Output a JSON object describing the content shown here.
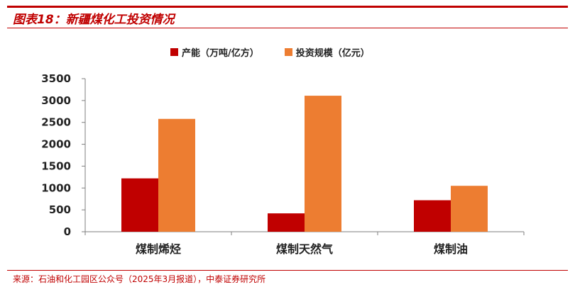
{
  "figure": {
    "title": "图表18：新疆煤化工投资情况",
    "source": "来源：石油和化工园区公众号（2025年3月报道），中泰证券研究所"
  },
  "colors": {
    "accent": "#c00000",
    "series1": "#c00000",
    "series2": "#ed7d31"
  },
  "chart_data": {
    "type": "bar",
    "title": "",
    "xlabel": "",
    "ylabel": "",
    "categories": [
      "煤制烯烃",
      "煤制天然气",
      "煤制油"
    ],
    "series": [
      {
        "name": "产能（万吨/亿方）",
        "values": [
          1220,
          420,
          720
        ],
        "color": "#c00000"
      },
      {
        "name": "投资规模（亿元）",
        "values": [
          2580,
          3110,
          1050
        ],
        "color": "#ed7d31"
      }
    ],
    "ylim": [
      0,
      3500
    ],
    "yticks": [
      "0",
      "500",
      "1000",
      "1500",
      "2000",
      "2500",
      "3000",
      "3500"
    ],
    "grid": false,
    "legend": "top-center"
  }
}
